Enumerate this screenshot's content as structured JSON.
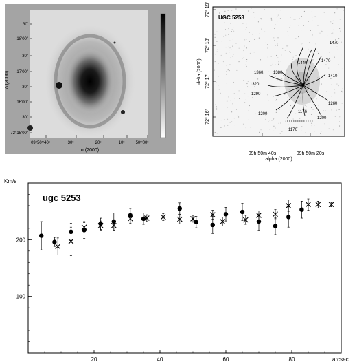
{
  "panel_a": {
    "dec_ticks": [
      "30'",
      "18'00\"",
      "30\"",
      "17'00\"",
      "30\"",
      "16'00\"",
      "30\"",
      "72°15'00\""
    ],
    "ra_ticks": [
      "09ʰ50ᵐ40ˢ",
      "30ˢ",
      "20ˢ",
      "10ˢ",
      "50ᵐ00ˢ"
    ],
    "xlabel": "α (2000)",
    "ylabel": "δ (2000)"
  },
  "panel_b": {
    "title": "UGC 5253",
    "dec_ticks": [
      "72° 19'",
      "72° 18'",
      "72° 17'",
      "72° 16'"
    ],
    "ra_ticks": [
      "09h 50m 40s",
      "09h 50m 20s"
    ],
    "xlabel": "alpha (2000)",
    "ylabel": "delta (2000)",
    "contour_labels": [
      "1470",
      "1440",
      "1470",
      "1410",
      "1360",
      "1380",
      "1320",
      "1290",
      "1260",
      "1200",
      "1176",
      "1200",
      "1170"
    ]
  },
  "chart_data": {
    "type": "scatter",
    "title": "ugc 5253",
    "xlabel": "arcsec",
    "ylabel": "Km/s",
    "xlim": [
      0,
      95
    ],
    "ylim": [
      0,
      300
    ],
    "x_ticks": [
      "20",
      "40",
      "60",
      "80"
    ],
    "y_ticks": [
      "100",
      "200"
    ],
    "series": [
      {
        "marker": "dot",
        "points": [
          {
            "x": 4,
            "y": 207,
            "err": 25
          },
          {
            "x": 8,
            "y": 196,
            "err": 8
          },
          {
            "x": 13,
            "y": 214,
            "err": 15
          },
          {
            "x": 17,
            "y": 217,
            "err": 15
          },
          {
            "x": 22,
            "y": 228,
            "err": 10
          },
          {
            "x": 26,
            "y": 232,
            "err": 15
          },
          {
            "x": 31,
            "y": 243,
            "err": 12
          },
          {
            "x": 35,
            "y": 237,
            "err": 10
          },
          {
            "x": 46,
            "y": 255,
            "err": 10
          },
          {
            "x": 51,
            "y": 231,
            "err": 10
          },
          {
            "x": 56,
            "y": 226,
            "err": 15
          },
          {
            "x": 60,
            "y": 245,
            "err": 12
          },
          {
            "x": 65,
            "y": 249,
            "err": 15
          },
          {
            "x": 70,
            "y": 232,
            "err": 15
          },
          {
            "x": 75,
            "y": 224,
            "err": 15
          },
          {
            "x": 79,
            "y": 240,
            "err": 18
          },
          {
            "x": 83,
            "y": 253,
            "err": 15
          }
        ]
      },
      {
        "marker": "cross",
        "points": [
          {
            "x": 9,
            "y": 188,
            "err": 15
          },
          {
            "x": 13,
            "y": 197,
            "err": 25
          },
          {
            "x": 17,
            "y": 222,
            "err": 8
          },
          {
            "x": 22,
            "y": 225,
            "err": 8
          },
          {
            "x": 26,
            "y": 225,
            "err": 8
          },
          {
            "x": 31,
            "y": 237,
            "err": 8
          },
          {
            "x": 36,
            "y": 238,
            "err": 6
          },
          {
            "x": 41,
            "y": 240,
            "err": 6
          },
          {
            "x": 46,
            "y": 236,
            "err": 8
          },
          {
            "x": 50,
            "y": 237,
            "err": 6
          },
          {
            "x": 56,
            "y": 244,
            "err": 8
          },
          {
            "x": 59,
            "y": 232,
            "err": 8
          },
          {
            "x": 66,
            "y": 235,
            "err": 8
          },
          {
            "x": 70,
            "y": 243,
            "err": 8
          },
          {
            "x": 75,
            "y": 245,
            "err": 8
          },
          {
            "x": 79,
            "y": 260,
            "err": 10
          },
          {
            "x": 85,
            "y": 262,
            "err": 10
          },
          {
            "x": 88,
            "y": 262,
            "err": 6
          },
          {
            "x": 92,
            "y": 262,
            "err": 4
          }
        ]
      }
    ]
  }
}
